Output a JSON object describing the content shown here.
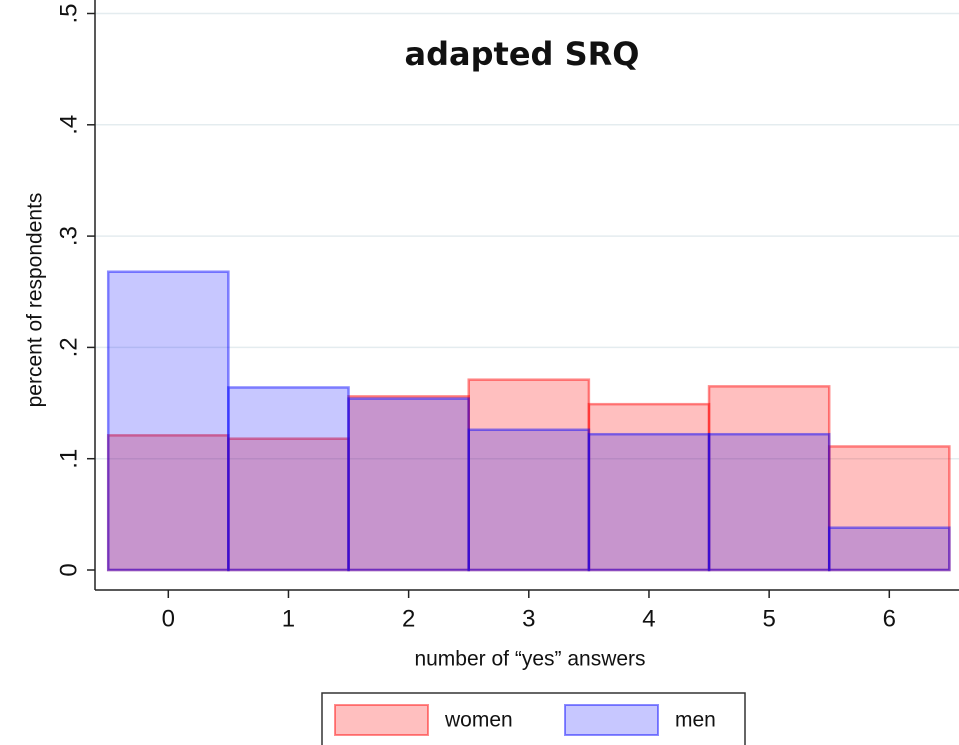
{
  "chart_data": {
    "type": "histogram",
    "title": "adapted SRQ",
    "x_label": "number of “yes” answers",
    "y_label": "percent of respondents",
    "bins": [
      -0.5,
      0.5,
      1.5,
      2.5,
      3.5,
      4.5,
      5.5,
      6.5
    ],
    "series": [
      {
        "name": "women",
        "color": "#ff0000",
        "values": [
          0.121,
          0.118,
          0.156,
          0.171,
          0.149,
          0.165,
          0.111
        ]
      },
      {
        "name": "men",
        "color": "#0000ff",
        "values": [
          0.268,
          0.164,
          0.154,
          0.126,
          0.122,
          0.122,
          0.038
        ]
      }
    ],
    "xlim": [
      -0.61,
      6.58
    ],
    "xticks": [
      0,
      1,
      2,
      3,
      4,
      5,
      6
    ],
    "ylim": [
      0,
      0.5
    ],
    "yticks": [
      0,
      {
        "value": 0.1,
        "label": ".1"
      },
      {
        "value": 0.2,
        "label": ".2"
      },
      {
        "value": 0.3,
        "label": ".3"
      },
      {
        "value": 0.4,
        "label": ".4"
      },
      {
        "value": 0.5,
        "label": ".5"
      }
    ],
    "grid": true
  }
}
